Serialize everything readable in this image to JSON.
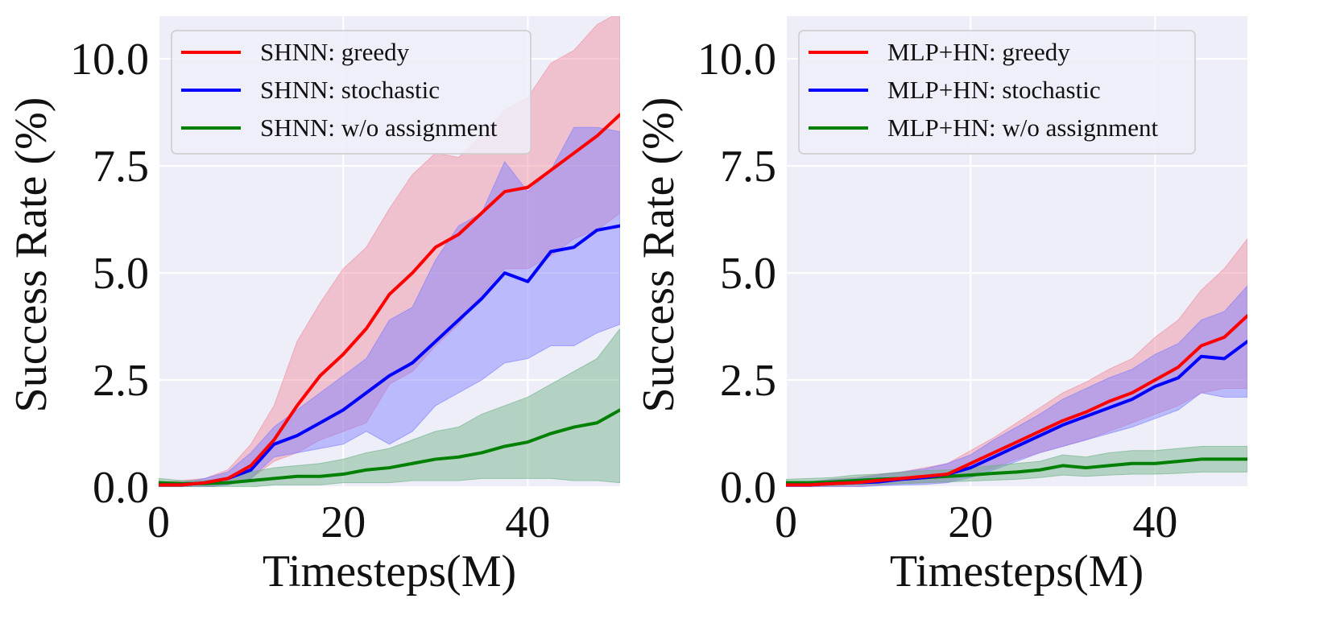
{
  "colors": {
    "plot_background": "#eeeef9",
    "grid": "#ffffff",
    "greedy": "#ff0000",
    "stochastic": "#0000ff",
    "wo_assignment": "#008000",
    "greedy_band": "#f08a9c",
    "stochastic_band": "#7b7bff",
    "wo_band": "#6aaf80"
  },
  "chart_data": [
    {
      "type": "line",
      "title": "",
      "xlabel": "Timesteps(M)",
      "ylabel": "Success Rate (%)",
      "xlim": [
        0,
        50
      ],
      "ylim": [
        0,
        11.0
      ],
      "xticks": [
        "0",
        "20",
        "40"
      ],
      "yticks": [
        "0.0",
        "2.5",
        "5.0",
        "7.5",
        "10.0"
      ],
      "grid": true,
      "legend_position": "top-left",
      "series": [
        {
          "name": "SHNN: greedy",
          "color_key": "greedy",
          "x": [
            0,
            2.5,
            5,
            7.5,
            10,
            12.5,
            15,
            17.5,
            20,
            22.5,
            25,
            27.5,
            30,
            32.5,
            35,
            37.5,
            40,
            42.5,
            45,
            47.5,
            50
          ],
          "mean": [
            0.05,
            0.05,
            0.1,
            0.2,
            0.5,
            1.1,
            1.9,
            2.6,
            3.1,
            3.7,
            4.5,
            5.0,
            5.6,
            5.9,
            6.4,
            6.9,
            7.0,
            7.4,
            7.8,
            8.2,
            8.7
          ],
          "upper": [
            0.1,
            0.15,
            0.2,
            0.4,
            1.0,
            1.9,
            3.4,
            4.3,
            5.1,
            5.6,
            6.5,
            7.3,
            7.8,
            7.7,
            8.2,
            8.8,
            9.1,
            9.9,
            10.2,
            10.8,
            11.1
          ],
          "lower": [
            0.0,
            0.0,
            0.0,
            0.05,
            0.2,
            0.6,
            0.8,
            1.1,
            1.3,
            1.5,
            2.4,
            2.7,
            3.3,
            3.8,
            4.5,
            5.1,
            5.1,
            5.4,
            5.8,
            6.0,
            6.4
          ]
        },
        {
          "name": "SHNN: stochastic",
          "color_key": "stochastic",
          "x": [
            0,
            2.5,
            5,
            7.5,
            10,
            12.5,
            15,
            17.5,
            20,
            22.5,
            25,
            27.5,
            30,
            32.5,
            35,
            37.5,
            40,
            42.5,
            45,
            47.5,
            50
          ],
          "mean": [
            0.05,
            0.05,
            0.1,
            0.2,
            0.4,
            1.0,
            1.2,
            1.5,
            1.8,
            2.2,
            2.6,
            2.9,
            3.4,
            3.9,
            4.4,
            5.0,
            4.8,
            5.5,
            5.6,
            6.0,
            6.1
          ],
          "upper": [
            0.1,
            0.1,
            0.2,
            0.35,
            0.8,
            1.4,
            1.8,
            2.2,
            2.6,
            3.0,
            3.9,
            4.2,
            5.3,
            6.1,
            6.4,
            7.6,
            6.9,
            7.4,
            8.4,
            8.4,
            8.3
          ],
          "lower": [
            0.0,
            0.0,
            0.0,
            0.05,
            0.2,
            0.7,
            0.8,
            0.9,
            1.0,
            1.3,
            1.0,
            1.3,
            1.9,
            2.2,
            2.5,
            2.9,
            3.0,
            3.3,
            3.3,
            3.6,
            3.8
          ]
        },
        {
          "name": "SHNN: w/o assignment",
          "color_key": "wo_assignment",
          "x": [
            0,
            2.5,
            5,
            7.5,
            10,
            12.5,
            15,
            17.5,
            20,
            22.5,
            25,
            27.5,
            30,
            32.5,
            35,
            37.5,
            40,
            42.5,
            45,
            47.5,
            50
          ],
          "mean": [
            0.1,
            0.08,
            0.08,
            0.1,
            0.15,
            0.2,
            0.25,
            0.25,
            0.3,
            0.4,
            0.45,
            0.55,
            0.65,
            0.7,
            0.8,
            0.95,
            1.05,
            1.25,
            1.4,
            1.5,
            1.8
          ],
          "upper": [
            0.2,
            0.15,
            0.15,
            0.2,
            0.35,
            0.45,
            0.5,
            0.55,
            0.65,
            0.8,
            0.9,
            1.1,
            1.3,
            1.4,
            1.7,
            1.9,
            2.1,
            2.4,
            2.7,
            3.0,
            3.7
          ],
          "lower": [
            0.0,
            0.0,
            0.0,
            0.0,
            0.0,
            0.05,
            0.05,
            0.05,
            0.1,
            0.1,
            0.1,
            0.15,
            0.15,
            0.15,
            0.2,
            0.2,
            0.2,
            0.2,
            0.15,
            0.15,
            0.1
          ]
        }
      ]
    },
    {
      "type": "line",
      "title": "",
      "xlabel": "Timesteps(M)",
      "ylabel": "Success Rate (%)",
      "xlim": [
        0,
        50
      ],
      "ylim": [
        0,
        11.0
      ],
      "xticks": [
        "0",
        "20",
        "40"
      ],
      "yticks": [
        "0.0",
        "2.5",
        "5.0",
        "7.5",
        "10.0"
      ],
      "grid": true,
      "legend_position": "top-left",
      "series": [
        {
          "name": "MLP+HN: greedy",
          "color_key": "greedy",
          "x": [
            0,
            2.5,
            5,
            7.5,
            10,
            12.5,
            15,
            17.5,
            20,
            22.5,
            25,
            27.5,
            30,
            32.5,
            35,
            37.5,
            40,
            42.5,
            45,
            47.5,
            50
          ],
          "mean": [
            0.05,
            0.05,
            0.08,
            0.1,
            0.15,
            0.2,
            0.25,
            0.3,
            0.55,
            0.8,
            1.05,
            1.3,
            1.55,
            1.75,
            2.0,
            2.2,
            2.5,
            2.8,
            3.3,
            3.5,
            4.0
          ],
          "upper": [
            0.1,
            0.12,
            0.18,
            0.22,
            0.3,
            0.35,
            0.45,
            0.55,
            0.85,
            1.15,
            1.5,
            1.85,
            2.2,
            2.45,
            2.75,
            3.0,
            3.5,
            3.9,
            4.6,
            5.1,
            5.8
          ],
          "lower": [
            0.0,
            0.0,
            0.0,
            0.0,
            0.05,
            0.08,
            0.1,
            0.12,
            0.3,
            0.45,
            0.65,
            0.8,
            0.95,
            1.1,
            1.3,
            1.5,
            1.7,
            1.9,
            2.2,
            2.3,
            2.3
          ]
        },
        {
          "name": "MLP+HN: stochastic",
          "color_key": "stochastic",
          "x": [
            0,
            2.5,
            5,
            7.5,
            10,
            12.5,
            15,
            17.5,
            20,
            22.5,
            25,
            27.5,
            30,
            32.5,
            35,
            37.5,
            40,
            42.5,
            45,
            47.5,
            50
          ],
          "mean": [
            0.05,
            0.05,
            0.08,
            0.1,
            0.12,
            0.18,
            0.22,
            0.3,
            0.45,
            0.7,
            0.95,
            1.2,
            1.45,
            1.65,
            1.85,
            2.05,
            2.35,
            2.55,
            3.05,
            3.0,
            3.4
          ],
          "upper": [
            0.1,
            0.12,
            0.18,
            0.2,
            0.28,
            0.35,
            0.42,
            0.55,
            0.75,
            1.1,
            1.4,
            1.7,
            2.05,
            2.3,
            2.55,
            2.75,
            3.1,
            3.35,
            3.9,
            4.1,
            4.7
          ],
          "lower": [
            0.0,
            0.0,
            0.0,
            0.0,
            0.03,
            0.05,
            0.06,
            0.1,
            0.22,
            0.4,
            0.6,
            0.8,
            0.95,
            1.1,
            1.25,
            1.4,
            1.6,
            1.8,
            2.2,
            2.1,
            2.1
          ]
        },
        {
          "name": "MLP+HN: w/o assignment",
          "color_key": "wo_assignment",
          "x": [
            0,
            2.5,
            5,
            7.5,
            10,
            12.5,
            15,
            17.5,
            20,
            22.5,
            25,
            27.5,
            30,
            32.5,
            35,
            37.5,
            40,
            42.5,
            45,
            47.5,
            50
          ],
          "mean": [
            0.1,
            0.1,
            0.12,
            0.15,
            0.18,
            0.2,
            0.22,
            0.25,
            0.28,
            0.32,
            0.35,
            0.4,
            0.5,
            0.45,
            0.5,
            0.55,
            0.55,
            0.6,
            0.65,
            0.65,
            0.65
          ],
          "upper": [
            0.18,
            0.2,
            0.22,
            0.28,
            0.3,
            0.35,
            0.38,
            0.4,
            0.45,
            0.5,
            0.55,
            0.6,
            0.75,
            0.7,
            0.8,
            0.85,
            0.85,
            0.9,
            0.95,
            0.95,
            0.95
          ],
          "lower": [
            0.02,
            0.02,
            0.03,
            0.05,
            0.06,
            0.08,
            0.1,
            0.12,
            0.14,
            0.16,
            0.18,
            0.22,
            0.28,
            0.25,
            0.28,
            0.3,
            0.3,
            0.32,
            0.35,
            0.35,
            0.35
          ]
        }
      ]
    }
  ]
}
